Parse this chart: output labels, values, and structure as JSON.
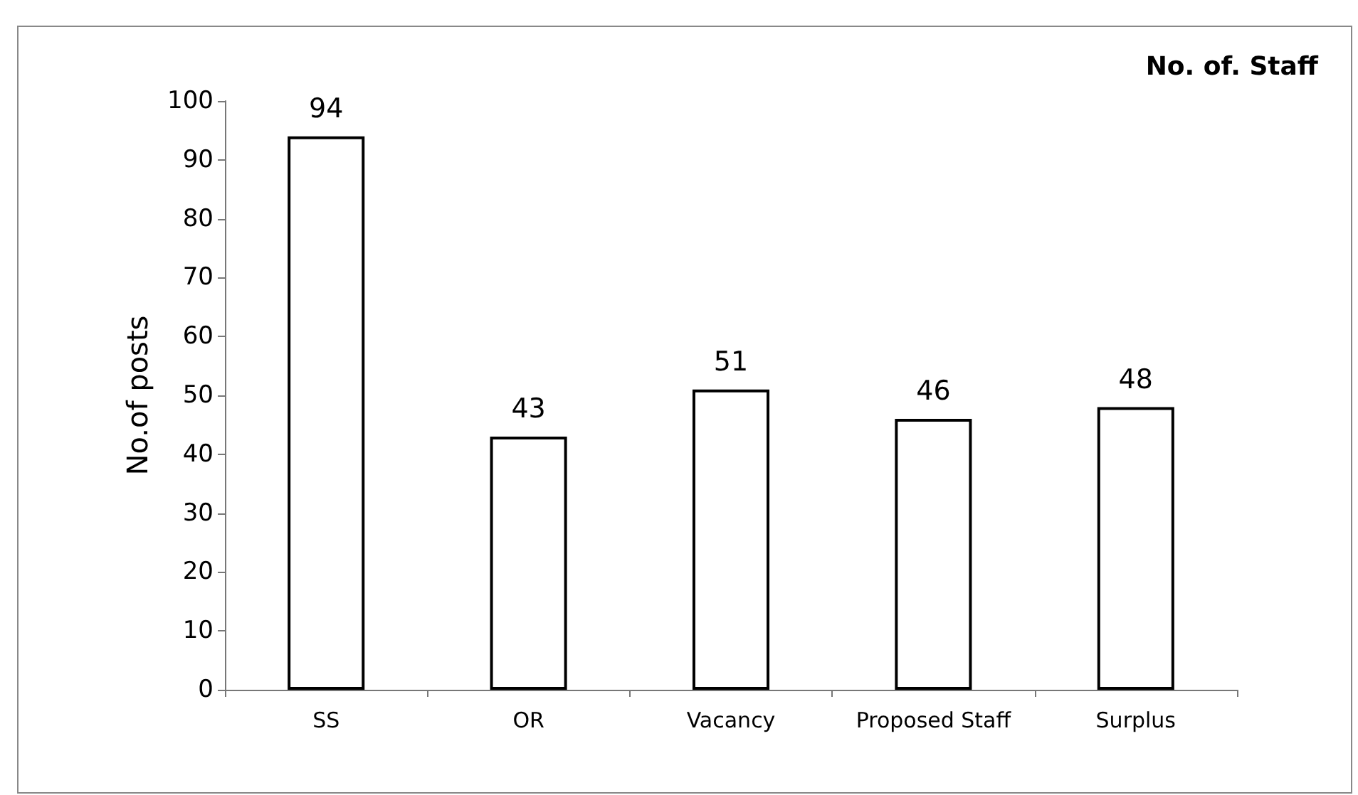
{
  "chart_data": {
    "type": "bar",
    "title": "No. of. Staff",
    "ylabel": "No.of posts",
    "categories": [
      "SS",
      "OR",
      "Vacancy",
      "Proposed Staff",
      "Surplus"
    ],
    "values": [
      94,
      43,
      51,
      46,
      48
    ],
    "color": "#ffffff",
    "ylim": [
      0,
      100
    ],
    "yticks": [
      0,
      10,
      20,
      30,
      40,
      50,
      60,
      70,
      80,
      90,
      100
    ],
    "grid": false,
    "data_labels": true
  }
}
